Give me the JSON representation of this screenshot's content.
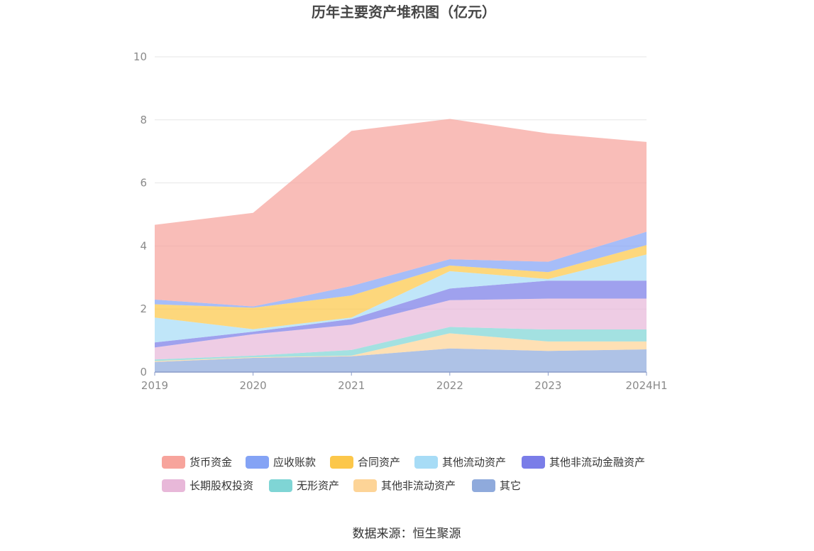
{
  "chart_data": {
    "type": "area",
    "stacked": true,
    "title": "历年主要资产堆积图（亿元）",
    "source": "数据来源：恒生聚源",
    "x": [
      "2019",
      "2020",
      "2021",
      "2022",
      "2023",
      "2024H1"
    ],
    "ylim": [
      0,
      10
    ],
    "yticks": [
      "0",
      "2",
      "4",
      "6",
      "8",
      "10"
    ],
    "grid": true,
    "legend_position": "bottom",
    "series": [
      {
        "name": "其它",
        "color": "#8faadc",
        "values": [
          0.32,
          0.45,
          0.5,
          0.75,
          0.67,
          0.72
        ]
      },
      {
        "name": "其他非流动资产",
        "color": "#fdd497",
        "values": [
          0.03,
          0.02,
          0.02,
          0.48,
          0.3,
          0.25
        ]
      },
      {
        "name": "无形资产",
        "color": "#7fd5d5",
        "values": [
          0.05,
          0.05,
          0.18,
          0.2,
          0.38,
          0.38
        ]
      },
      {
        "name": "长期股权投资",
        "color": "#e8b8d9",
        "values": [
          0.38,
          0.68,
          0.8,
          0.85,
          0.98,
          0.98
        ]
      },
      {
        "name": "其他非流动金融资产",
        "color": "#7a7de8",
        "values": [
          0.16,
          0.08,
          0.18,
          0.37,
          0.57,
          0.57
        ]
      },
      {
        "name": "其他流动资产",
        "color": "#a7dcf6",
        "values": [
          0.79,
          0.08,
          0.05,
          0.55,
          0.05,
          0.83
        ]
      },
      {
        "name": "合同资产",
        "color": "#fcc74a",
        "values": [
          0.42,
          0.68,
          0.7,
          0.18,
          0.22,
          0.3
        ]
      },
      {
        "name": "应收账款",
        "color": "#84a3f5",
        "values": [
          0.15,
          0.04,
          0.3,
          0.2,
          0.33,
          0.42
        ]
      },
      {
        "name": "货币资金",
        "color": "#f7a49c",
        "values": [
          2.37,
          2.97,
          4.92,
          4.45,
          4.07,
          2.85
        ]
      }
    ],
    "legend_order": [
      "货币资金",
      "应收账款",
      "合同资产",
      "其他流动资产",
      "其他非流动金融资产",
      "长期股权投资",
      "无形资产",
      "其他非流动资产",
      "其它"
    ]
  }
}
